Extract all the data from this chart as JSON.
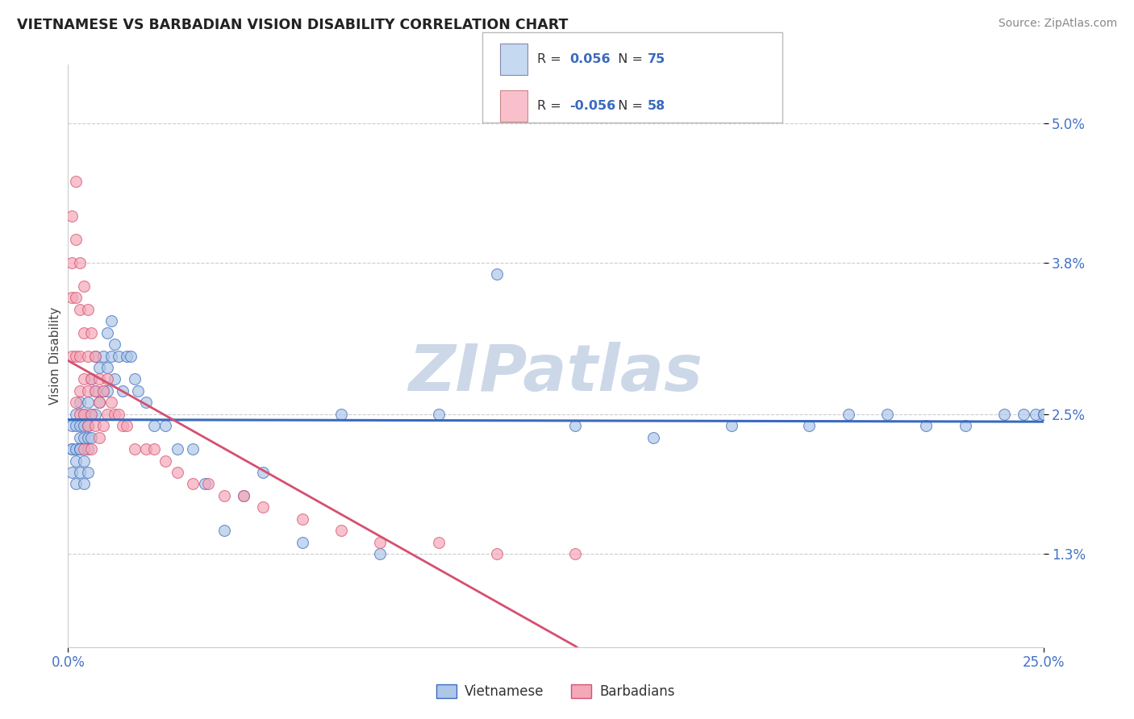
{
  "title": "VIETNAMESE VS BARBADIAN VISION DISABILITY CORRELATION CHART",
  "source": "Source: ZipAtlas.com",
  "ylabel": "Vision Disability",
  "xlim": [
    0.0,
    0.25
  ],
  "ylim": [
    0.005,
    0.055
  ],
  "yticks": [
    0.013,
    0.025,
    0.038,
    0.05
  ],
  "ytick_labels": [
    "1.3%",
    "2.5%",
    "3.8%",
    "5.0%"
  ],
  "xticks": [
    0.0,
    0.25
  ],
  "xtick_labels": [
    "0.0%",
    "25.0%"
  ],
  "r_vietnamese": 0.056,
  "n_vietnamese": 75,
  "r_barbadian": -0.056,
  "n_barbadian": 58,
  "color_vietnamese": "#aec6e8",
  "color_barbadian": "#f4a8b8",
  "line_color_vietnamese": "#3a6abf",
  "line_color_barbadian": "#d45070",
  "legend_box_color_vietnamese": "#c5d9f1",
  "legend_box_color_barbadian": "#f9c0cc",
  "watermark": "ZIPatlas",
  "watermark_color": "#ccd8e8",
  "background_color": "#ffffff",
  "grid_color": "#cccccc",
  "vietnamese_x": [
    0.001,
    0.001,
    0.001,
    0.001,
    0.002,
    0.002,
    0.002,
    0.002,
    0.002,
    0.003,
    0.003,
    0.003,
    0.003,
    0.003,
    0.003,
    0.004,
    0.004,
    0.004,
    0.004,
    0.004,
    0.005,
    0.005,
    0.005,
    0.005,
    0.005,
    0.006,
    0.006,
    0.006,
    0.007,
    0.007,
    0.007,
    0.008,
    0.008,
    0.009,
    0.009,
    0.01,
    0.01,
    0.01,
    0.011,
    0.011,
    0.012,
    0.012,
    0.013,
    0.014,
    0.015,
    0.016,
    0.017,
    0.018,
    0.02,
    0.022,
    0.025,
    0.028,
    0.032,
    0.035,
    0.04,
    0.045,
    0.05,
    0.06,
    0.07,
    0.08,
    0.095,
    0.11,
    0.13,
    0.15,
    0.17,
    0.19,
    0.2,
    0.21,
    0.22,
    0.23,
    0.24,
    0.245,
    0.248,
    0.25,
    0.25
  ],
  "vietnamese_y": [
    0.022,
    0.024,
    0.022,
    0.02,
    0.025,
    0.022,
    0.024,
    0.021,
    0.019,
    0.026,
    0.023,
    0.022,
    0.02,
    0.024,
    0.022,
    0.025,
    0.023,
    0.021,
    0.019,
    0.024,
    0.026,
    0.024,
    0.022,
    0.02,
    0.023,
    0.028,
    0.025,
    0.023,
    0.03,
    0.027,
    0.025,
    0.029,
    0.026,
    0.03,
    0.027,
    0.032,
    0.029,
    0.027,
    0.033,
    0.03,
    0.031,
    0.028,
    0.03,
    0.027,
    0.03,
    0.03,
    0.028,
    0.027,
    0.026,
    0.024,
    0.024,
    0.022,
    0.022,
    0.019,
    0.015,
    0.018,
    0.02,
    0.014,
    0.025,
    0.013,
    0.025,
    0.037,
    0.024,
    0.023,
    0.024,
    0.024,
    0.025,
    0.025,
    0.024,
    0.024,
    0.025,
    0.025,
    0.025,
    0.025,
    0.025
  ],
  "barbadian_x": [
    0.001,
    0.001,
    0.001,
    0.001,
    0.002,
    0.002,
    0.002,
    0.002,
    0.002,
    0.003,
    0.003,
    0.003,
    0.003,
    0.003,
    0.004,
    0.004,
    0.004,
    0.004,
    0.004,
    0.005,
    0.005,
    0.005,
    0.005,
    0.006,
    0.006,
    0.006,
    0.006,
    0.007,
    0.007,
    0.007,
    0.008,
    0.008,
    0.008,
    0.009,
    0.009,
    0.01,
    0.01,
    0.011,
    0.012,
    0.013,
    0.014,
    0.015,
    0.017,
    0.02,
    0.022,
    0.025,
    0.028,
    0.032,
    0.036,
    0.04,
    0.045,
    0.05,
    0.06,
    0.07,
    0.08,
    0.095,
    0.11,
    0.13
  ],
  "barbadian_y": [
    0.038,
    0.042,
    0.035,
    0.03,
    0.045,
    0.04,
    0.035,
    0.03,
    0.026,
    0.038,
    0.034,
    0.03,
    0.027,
    0.025,
    0.036,
    0.032,
    0.028,
    0.025,
    0.022,
    0.034,
    0.03,
    0.027,
    0.024,
    0.032,
    0.028,
    0.025,
    0.022,
    0.03,
    0.027,
    0.024,
    0.028,
    0.026,
    0.023,
    0.027,
    0.024,
    0.028,
    0.025,
    0.026,
    0.025,
    0.025,
    0.024,
    0.024,
    0.022,
    0.022,
    0.022,
    0.021,
    0.02,
    0.019,
    0.019,
    0.018,
    0.018,
    0.017,
    0.016,
    0.015,
    0.014,
    0.014,
    0.013,
    0.013
  ]
}
